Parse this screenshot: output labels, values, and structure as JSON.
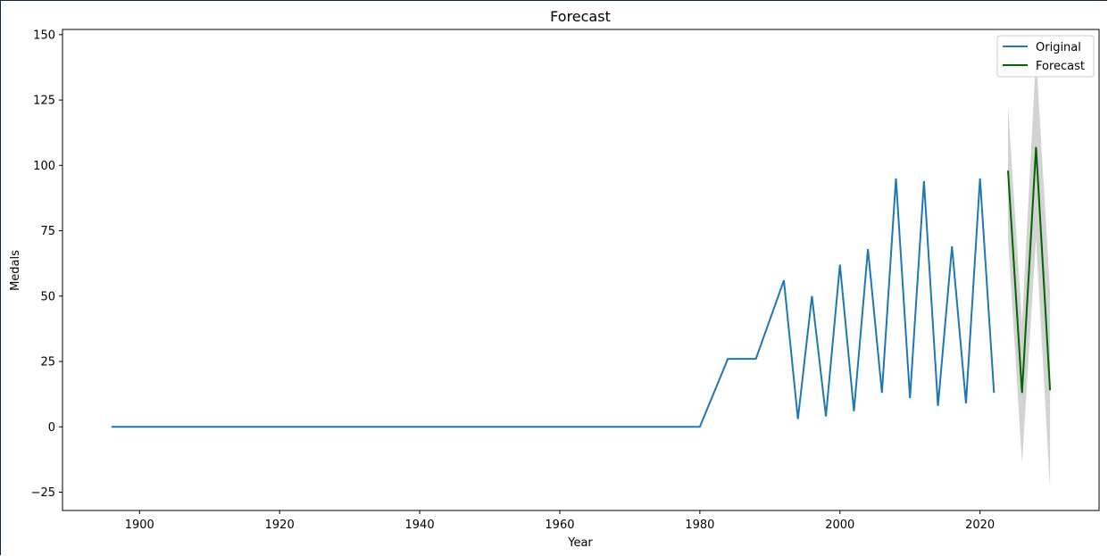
{
  "chart_data": {
    "type": "line",
    "title": "Forecast",
    "xlabel": "Year",
    "ylabel": "Medals",
    "xlim": [
      1889,
      2037
    ],
    "ylim": [
      -32,
      152
    ],
    "xticks": [
      1900,
      1920,
      1940,
      1960,
      1980,
      2000,
      2020
    ],
    "yticks": [
      -25,
      0,
      25,
      50,
      75,
      100,
      125,
      150
    ],
    "grid": false,
    "legend_position": "top-right",
    "series": [
      {
        "name": "Original",
        "color": "#1f77b4",
        "x": [
          1896,
          1980,
          1984,
          1988,
          1992,
          1994,
          1996,
          1998,
          2000,
          2002,
          2004,
          2006,
          2008,
          2010,
          2012,
          2014,
          2016,
          2018,
          2020,
          2022
        ],
        "y": [
          0,
          0,
          26,
          26,
          56,
          3,
          50,
          4,
          62,
          6,
          68,
          13,
          95,
          11,
          94,
          8,
          69,
          9,
          95,
          13
        ]
      },
      {
        "name": "Forecast",
        "color": "#006400",
        "x": [
          2024,
          2026,
          2028,
          2030
        ],
        "y": [
          98,
          13,
          107,
          14
        ]
      }
    ],
    "confidence_band": {
      "color": "#d3d3d3",
      "x": [
        2024,
        2026,
        2028,
        2030
      ],
      "upper": [
        123,
        40,
        142,
        52
      ],
      "lower": [
        72,
        -14,
        72,
        -24
      ]
    }
  }
}
